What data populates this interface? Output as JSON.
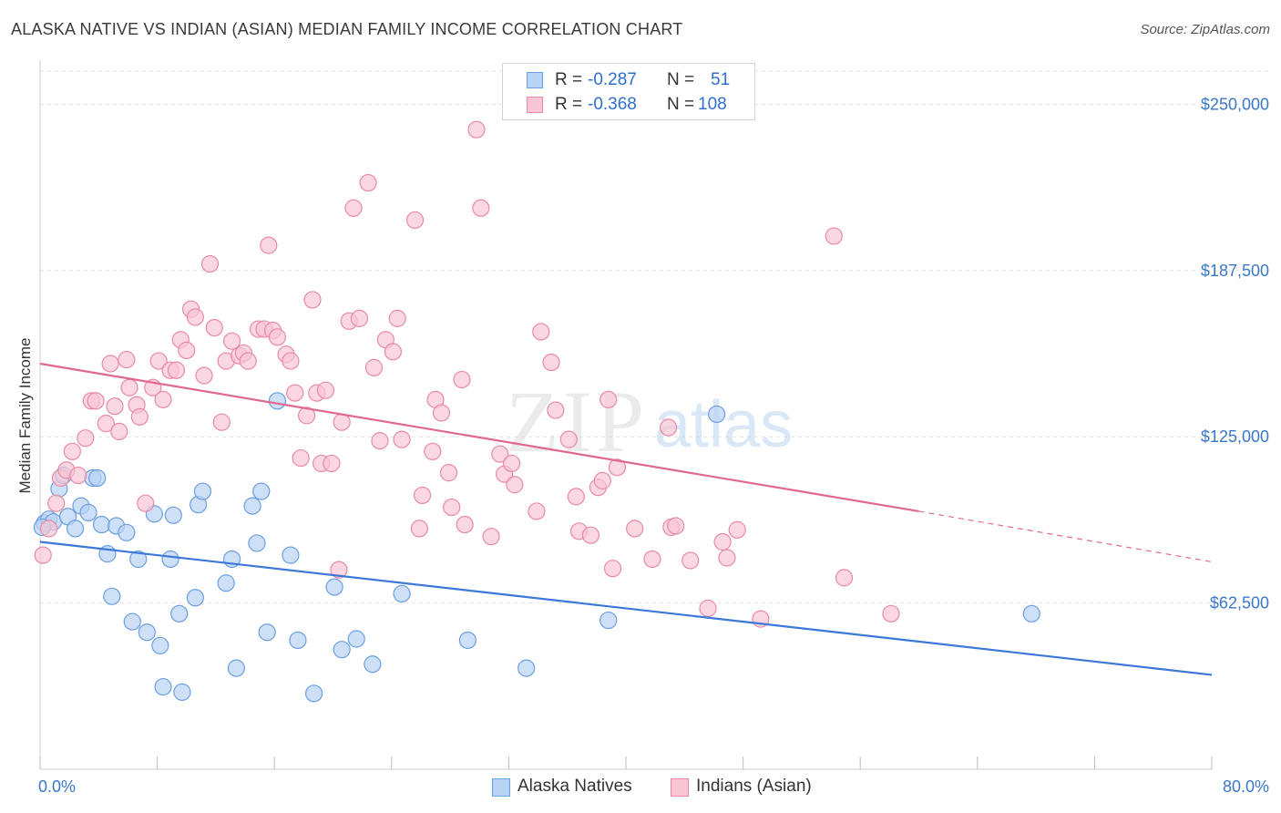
{
  "title": "ALASKA NATIVE VS INDIAN (ASIAN) MEDIAN FAMILY INCOME CORRELATION CHART",
  "source": "Source: ZipAtlas.com",
  "watermark": {
    "zip": "ZIP",
    "atlas": "atlas"
  },
  "legend": {
    "r_label": "R =",
    "n_label": "N =",
    "series": [
      {
        "name": "Alaska Natives",
        "r": "-0.287",
        "n": "51",
        "fill": "#b9d3f5",
        "stroke": "#6a9fe0"
      },
      {
        "name": "Indians (Asian)",
        "r": "-0.368",
        "n": "108",
        "fill": "#f8c6d4",
        "stroke": "#e88aa6"
      }
    ]
  },
  "chart_data": {
    "type": "scatter",
    "xlabel": "",
    "ylabel": "Median Family Income",
    "xlim": [
      0,
      80
    ],
    "ylim": [
      0,
      262500
    ],
    "x_tick_labels": [
      "0.0%",
      "80.0%"
    ],
    "y_ticks": [
      62500,
      125000,
      187500,
      250000
    ],
    "y_tick_labels": [
      "$62,500",
      "$125,000",
      "$187,500",
      "$250,000"
    ],
    "grid": true,
    "series": [
      {
        "name": "Alaska Natives",
        "color": "#3b78d8",
        "fill": "#b9d3f5",
        "trend": {
          "x": [
            0,
            80
          ],
          "y": [
            85500,
            35500
          ],
          "dashed_from": null
        },
        "points": [
          [
            0.3,
            92500
          ],
          [
            0.6,
            94000
          ],
          [
            0.9,
            93000
          ],
          [
            1.3,
            105500
          ],
          [
            1.6,
            110500
          ],
          [
            1.9,
            95000
          ],
          [
            2.4,
            90500
          ],
          [
            2.8,
            99000
          ],
          [
            3.3,
            96500
          ],
          [
            3.6,
            109500
          ],
          [
            3.9,
            109500
          ],
          [
            4.2,
            92000
          ],
          [
            4.6,
            81000
          ],
          [
            4.9,
            65000
          ],
          [
            5.2,
            91500
          ],
          [
            5.9,
            89000
          ],
          [
            6.3,
            55500
          ],
          [
            6.7,
            79000
          ],
          [
            7.3,
            51500
          ],
          [
            7.8,
            96000
          ],
          [
            8.2,
            46500
          ],
          [
            8.4,
            31000
          ],
          [
            8.9,
            79000
          ],
          [
            9.1,
            95500
          ],
          [
            9.5,
            58500
          ],
          [
            9.7,
            29000
          ],
          [
            10.6,
            64500
          ],
          [
            10.8,
            99500
          ],
          [
            11.1,
            104500
          ],
          [
            12.7,
            70000
          ],
          [
            13.1,
            79000
          ],
          [
            13.4,
            38000
          ],
          [
            14.5,
            99000
          ],
          [
            14.8,
            85000
          ],
          [
            15.1,
            104500
          ],
          [
            15.5,
            51500
          ],
          [
            16.2,
            138500
          ],
          [
            17.1,
            80500
          ],
          [
            17.6,
            48500
          ],
          [
            18.7,
            28500
          ],
          [
            20.1,
            68500
          ],
          [
            20.6,
            45000
          ],
          [
            21.6,
            49000
          ],
          [
            22.7,
            39500
          ],
          [
            24.7,
            66000
          ],
          [
            29.2,
            48500
          ],
          [
            33.2,
            38000
          ],
          [
            38.8,
            56000
          ],
          [
            46.2,
            133500
          ],
          [
            67.7,
            58500
          ],
          [
            0.15,
            91000
          ]
        ]
      },
      {
        "name": "Indians (Asian)",
        "color": "#e06890",
        "fill": "#f8c6d4",
        "trend": {
          "x": [
            0,
            60,
            80
          ],
          "y": [
            152500,
            97000,
            78000
          ],
          "dashed_from": 60
        },
        "points": [
          [
            0.2,
            80500
          ],
          [
            0.6,
            90500
          ],
          [
            1.1,
            100000
          ],
          [
            1.4,
            109500
          ],
          [
            1.8,
            112500
          ],
          [
            2.2,
            119500
          ],
          [
            2.6,
            110500
          ],
          [
            3.1,
            124500
          ],
          [
            3.5,
            138500
          ],
          [
            3.8,
            138500
          ],
          [
            4.5,
            130000
          ],
          [
            4.8,
            152500
          ],
          [
            5.1,
            136500
          ],
          [
            5.4,
            127000
          ],
          [
            5.9,
            154000
          ],
          [
            6.1,
            143500
          ],
          [
            6.6,
            137000
          ],
          [
            6.8,
            132500
          ],
          [
            7.2,
            100000
          ],
          [
            7.7,
            143500
          ],
          [
            8.1,
            153500
          ],
          [
            8.4,
            139000
          ],
          [
            8.9,
            150000
          ],
          [
            9.3,
            150000
          ],
          [
            9.6,
            161500
          ],
          [
            10.0,
            157500
          ],
          [
            10.3,
            173000
          ],
          [
            10.6,
            170000
          ],
          [
            11.2,
            148000
          ],
          [
            11.6,
            190000
          ],
          [
            11.9,
            166000
          ],
          [
            12.4,
            130500
          ],
          [
            12.7,
            153500
          ],
          [
            13.1,
            161000
          ],
          [
            13.6,
            155500
          ],
          [
            13.9,
            156500
          ],
          [
            14.2,
            153500
          ],
          [
            14.9,
            165500
          ],
          [
            15.3,
            165500
          ],
          [
            15.6,
            197000
          ],
          [
            15.9,
            165000
          ],
          [
            16.2,
            162500
          ],
          [
            16.8,
            156000
          ],
          [
            17.1,
            153500
          ],
          [
            17.4,
            141500
          ],
          [
            17.8,
            117000
          ],
          [
            18.2,
            133000
          ],
          [
            18.6,
            176500
          ],
          [
            18.9,
            141500
          ],
          [
            19.2,
            115000
          ],
          [
            19.5,
            142500
          ],
          [
            19.9,
            115000
          ],
          [
            20.6,
            130500
          ],
          [
            20.4,
            75000
          ],
          [
            21.1,
            168500
          ],
          [
            21.4,
            211000
          ],
          [
            21.8,
            169500
          ],
          [
            22.4,
            220500
          ],
          [
            22.8,
            151000
          ],
          [
            23.2,
            123500
          ],
          [
            23.6,
            161500
          ],
          [
            24.1,
            157000
          ],
          [
            24.4,
            169500
          ],
          [
            24.7,
            124000
          ],
          [
            25.6,
            206500
          ],
          [
            25.9,
            90500
          ],
          [
            26.1,
            103000
          ],
          [
            26.8,
            119500
          ],
          [
            27.0,
            139000
          ],
          [
            27.4,
            134000
          ],
          [
            27.9,
            111500
          ],
          [
            28.1,
            98500
          ],
          [
            28.8,
            146500
          ],
          [
            29.0,
            92000
          ],
          [
            29.8,
            240500
          ],
          [
            30.1,
            211000
          ],
          [
            30.8,
            87500
          ],
          [
            31.4,
            118500
          ],
          [
            31.7,
            111000
          ],
          [
            32.2,
            115000
          ],
          [
            32.4,
            107000
          ],
          [
            33.9,
            97000
          ],
          [
            34.2,
            164500
          ],
          [
            34.9,
            153000
          ],
          [
            35.2,
            135000
          ],
          [
            36.1,
            124000
          ],
          [
            36.6,
            102500
          ],
          [
            36.8,
            89500
          ],
          [
            37.6,
            88000
          ],
          [
            38.1,
            106000
          ],
          [
            38.4,
            108500
          ],
          [
            38.8,
            139000
          ],
          [
            39.1,
            75500
          ],
          [
            39.4,
            113500
          ],
          [
            40.6,
            90500
          ],
          [
            41.8,
            79000
          ],
          [
            42.9,
            128500
          ],
          [
            43.1,
            91000
          ],
          [
            43.4,
            91500
          ],
          [
            44.4,
            78500
          ],
          [
            45.6,
            60500
          ],
          [
            46.6,
            85500
          ],
          [
            46.9,
            79500
          ],
          [
            47.6,
            90000
          ],
          [
            49.2,
            56500
          ],
          [
            54.2,
            200500
          ],
          [
            54.9,
            72000
          ],
          [
            58.1,
            58500
          ]
        ]
      }
    ]
  }
}
